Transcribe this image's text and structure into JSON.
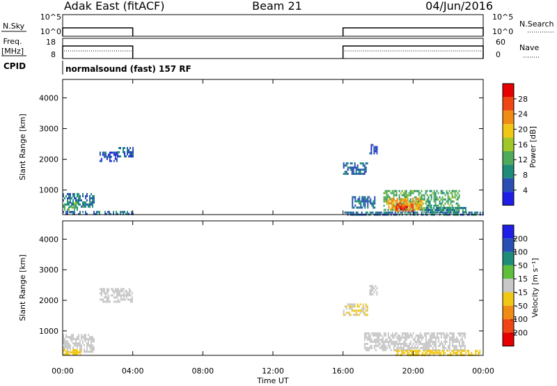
{
  "header": {
    "station": "Adak East (fitACF)",
    "beam": "Beam 21",
    "date": "04/Jun/2016"
  },
  "top_panels": {
    "nsky_label": "N.Sky",
    "nsearch_label": "N.Search",
    "nsky_ticks": [
      "10^5",
      "10^0"
    ],
    "nsearch_ticks": [
      "10^5",
      "10^0"
    ],
    "freq_label_line1": "Freq.",
    "freq_label_line2": "[MHz]",
    "freq_ticks": [
      "18",
      "8"
    ],
    "nave_label": "Nave",
    "nave_ticks": [
      "60",
      "0"
    ],
    "cpid_label": "CPID",
    "cpid_text": "normalsound (fast) 157 RF",
    "on_intervals": [
      [
        0,
        4
      ],
      [
        16,
        24
      ]
    ]
  },
  "x_axis": {
    "label": "Time UT",
    "ticks": [
      "00:00",
      "04:00",
      "08:00",
      "12:00",
      "16:00",
      "20:00",
      "00:00"
    ],
    "range_hours": [
      0,
      24
    ]
  },
  "colors": {
    "power_scale": [
      "#1e1ee6",
      "#2850b4",
      "#1e8c78",
      "#4faa5a",
      "#a0c828",
      "#f0c814",
      "#f08c14",
      "#f04614",
      "#e60000"
    ],
    "velocity_scale": [
      "#1e1ee6",
      "#2850b4",
      "#1e8c78",
      "#5fbe3c",
      "#c8c8c8",
      "#f0c814",
      "#f08c14",
      "#f04614",
      "#e60000"
    ]
  },
  "chart_data": [
    {
      "type": "heatmap",
      "name": "power",
      "ylabel": "Slant Range [km]",
      "yticks": [
        "1000",
        "2000",
        "3000",
        "4000"
      ],
      "ylim": [
        200,
        4600
      ],
      "xlim": [
        0,
        24
      ],
      "colorbar_label": "Power [dB]",
      "colorbar_ticks": [
        "4",
        "8",
        "12",
        "16",
        "20",
        "24",
        "28"
      ],
      "colorbar_range": [
        0,
        32
      ],
      "regions": [
        {
          "t": [
            0.0,
            1.8
          ],
          "r": [
            450,
            900
          ],
          "v": 8
        },
        {
          "t": [
            0.0,
            0.8
          ],
          "r": [
            350,
            600
          ],
          "v": 12
        },
        {
          "t": [
            0.2,
            0.5
          ],
          "r": [
            250,
            380
          ],
          "v": 14
        },
        {
          "t": [
            2.1,
            3.1
          ],
          "r": [
            1950,
            2250
          ],
          "v": 5
        },
        {
          "t": [
            3.1,
            4.0
          ],
          "r": [
            2100,
            2400
          ],
          "v": 6
        },
        {
          "t": [
            16.0,
            17.4
          ],
          "r": [
            1500,
            1900
          ],
          "v": 6
        },
        {
          "t": [
            16.5,
            17.8
          ],
          "r": [
            450,
            800
          ],
          "v": 7
        },
        {
          "t": [
            17.5,
            17.9
          ],
          "r": [
            2200,
            2500
          ],
          "v": 5
        },
        {
          "t": [
            18.3,
            22.6
          ],
          "r": [
            350,
            1000
          ],
          "v": 12
        },
        {
          "t": [
            18.5,
            20.5
          ],
          "r": [
            350,
            750
          ],
          "v": 22
        },
        {
          "t": [
            19.0,
            20.0
          ],
          "r": [
            300,
            550
          ],
          "v": 27
        },
        {
          "t": [
            20.5,
            23.0
          ],
          "r": [
            250,
            450
          ],
          "v": 9
        },
        {
          "t": [
            0.0,
            4.0
          ],
          "r": [
            220,
            320
          ],
          "v": 6
        },
        {
          "t": [
            16.0,
            24.0
          ],
          "r": [
            220,
            300
          ],
          "v": 7
        }
      ]
    },
    {
      "type": "heatmap",
      "name": "velocity",
      "ylabel": "Slant Range [km]",
      "yticks": [
        "1000",
        "2000",
        "3000",
        "4000"
      ],
      "ylim": [
        200,
        4600
      ],
      "xlim": [
        0,
        24
      ],
      "colorbar_label": "Velocity [m s⁻¹]",
      "colorbar_ticks": [
        "200",
        "100",
        "50",
        "15",
        "-15",
        "-50",
        "-100",
        "-200"
      ],
      "colorbar_range": [
        -300,
        300
      ],
      "regions": [
        {
          "t": [
            0.0,
            1.8
          ],
          "r": [
            350,
            900
          ],
          "v": 0
        },
        {
          "t": [
            0.0,
            1.0
          ],
          "r": [
            250,
            400
          ],
          "v": -60
        },
        {
          "t": [
            2.1,
            4.0
          ],
          "r": [
            1950,
            2400
          ],
          "v": 0
        },
        {
          "t": [
            16.0,
            17.4
          ],
          "r": [
            1500,
            1900
          ],
          "v": -30
        },
        {
          "t": [
            17.5,
            17.9
          ],
          "r": [
            2200,
            2500
          ],
          "v": 0
        },
        {
          "t": [
            17.2,
            23.0
          ],
          "r": [
            350,
            950
          ],
          "v": 0
        },
        {
          "t": [
            19.0,
            23.8
          ],
          "r": [
            220,
            380
          ],
          "v": -60
        }
      ]
    }
  ]
}
